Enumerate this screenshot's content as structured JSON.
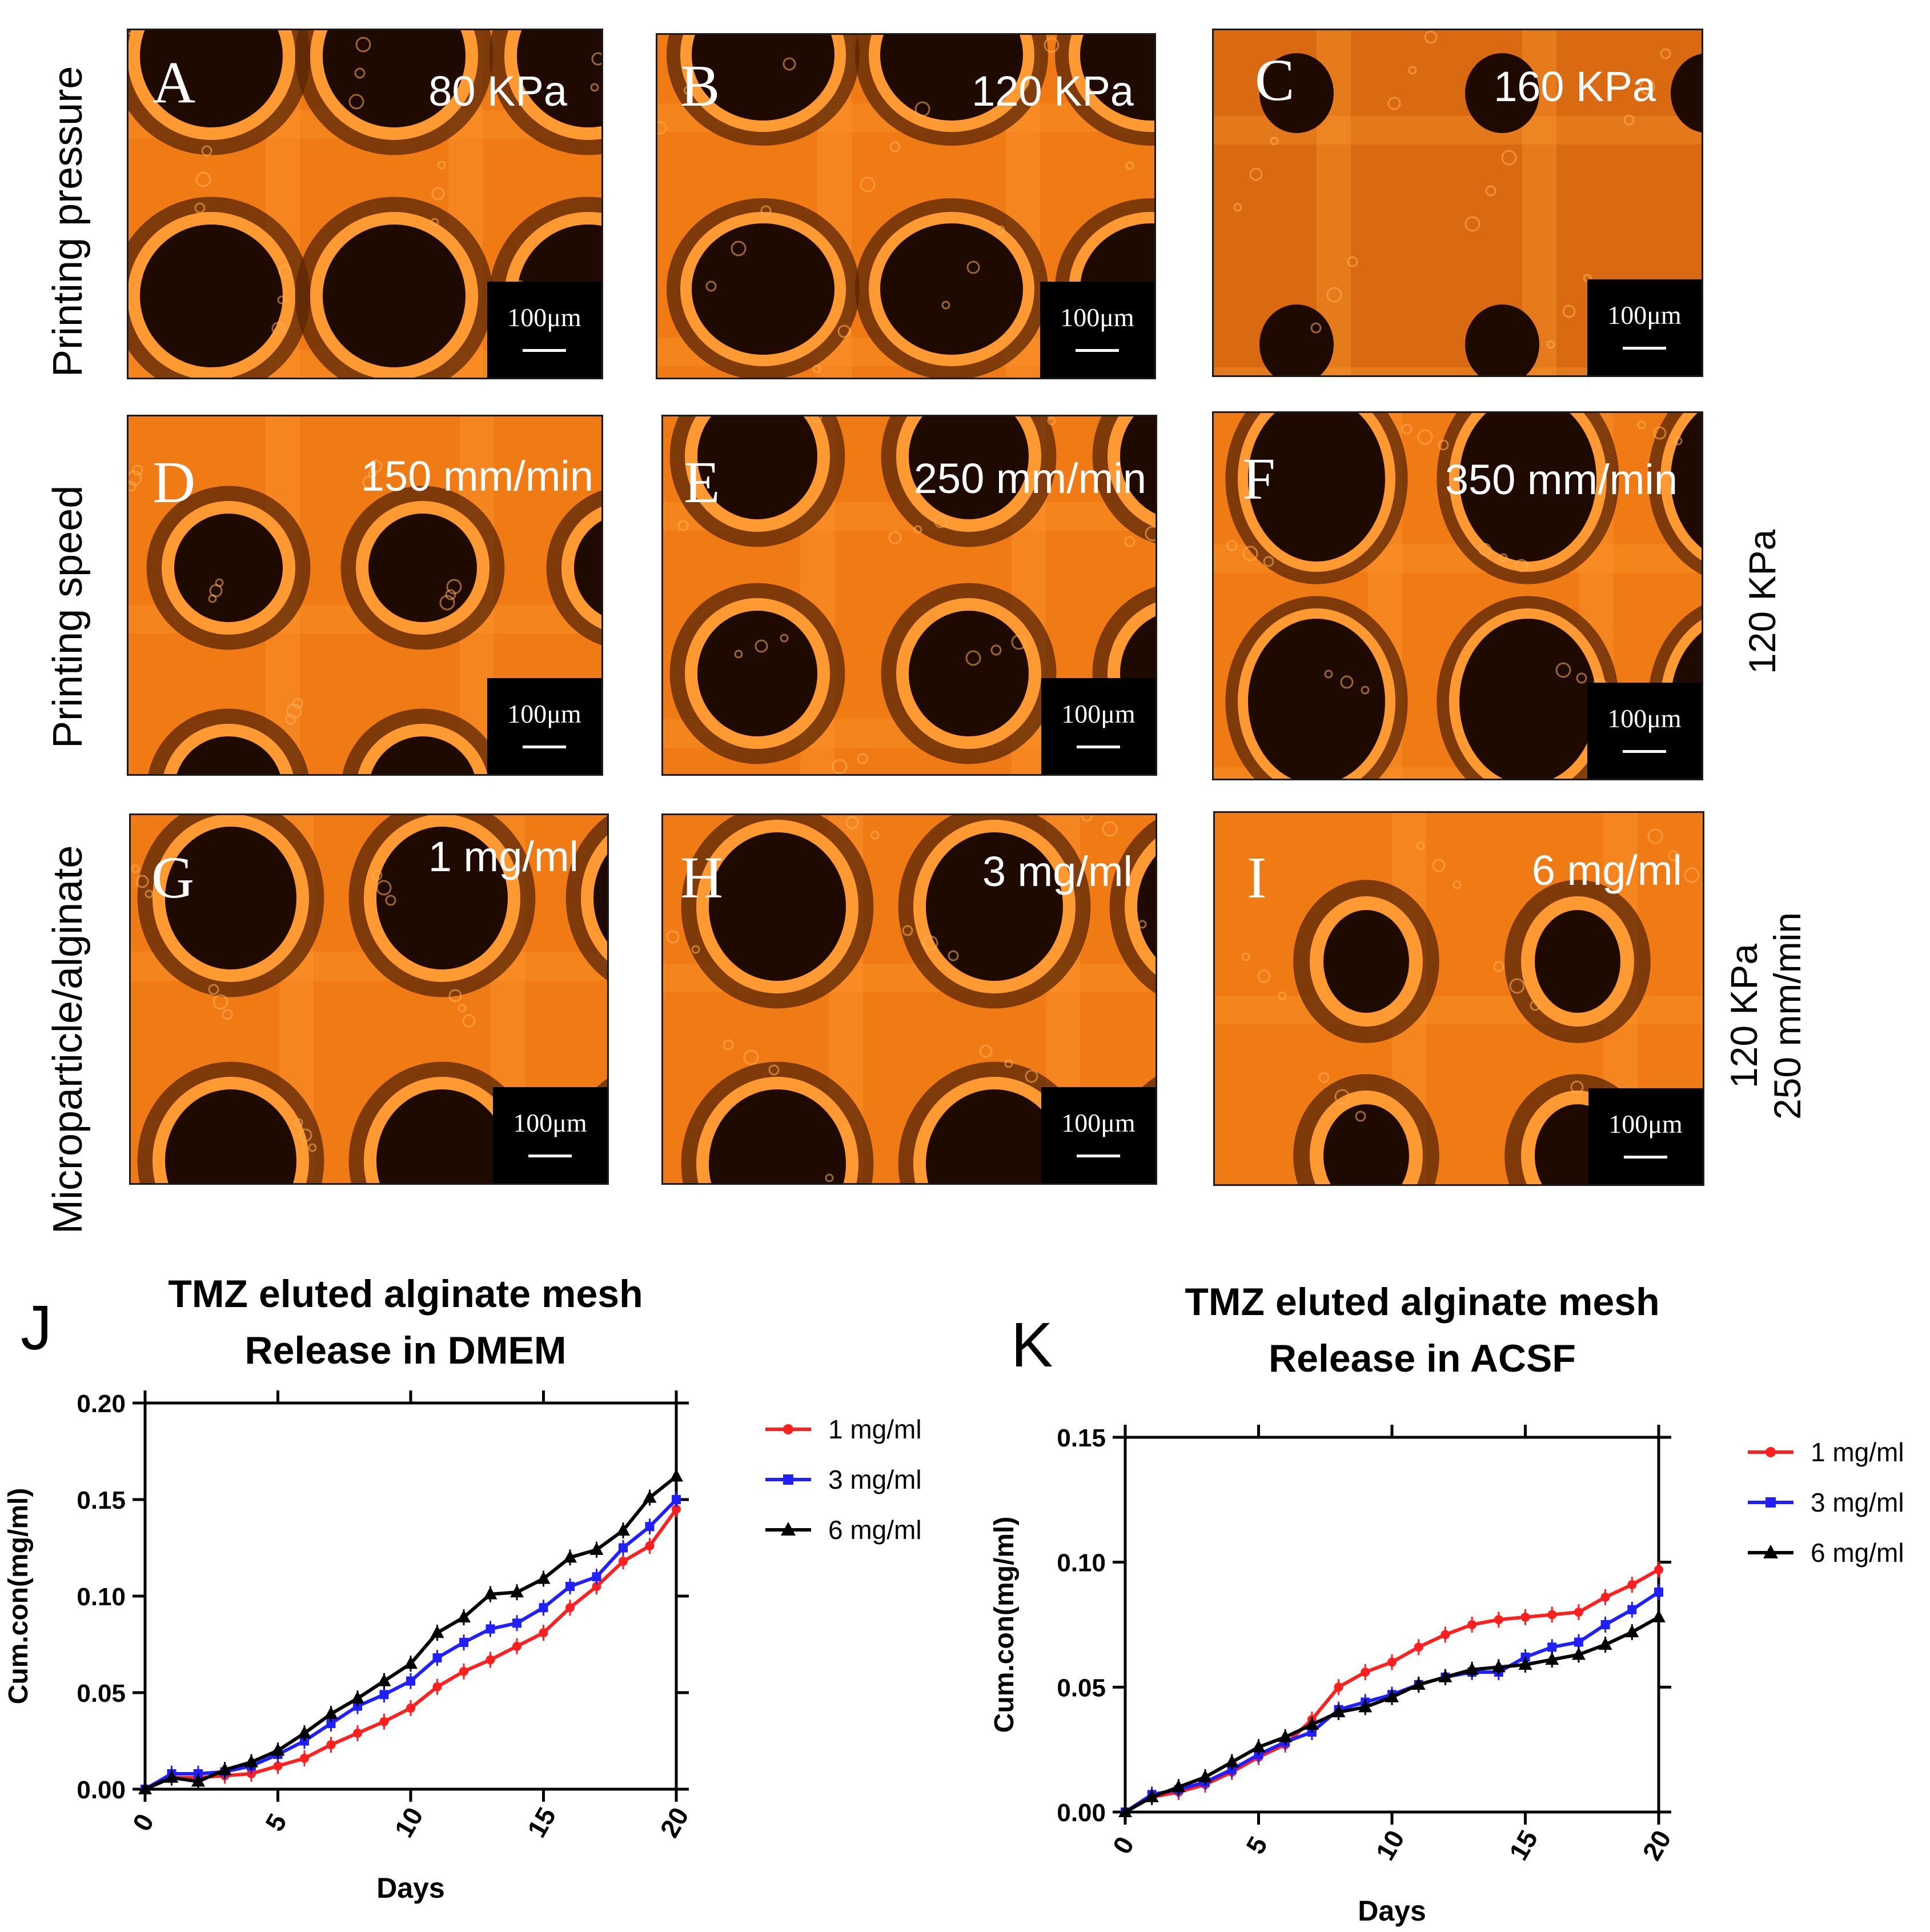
{
  "row_labels": {
    "pressure": "Printing pressure",
    "speed": "Printing speed",
    "ratio": "Microparticle/alginate"
  },
  "side_labels": {
    "speed_row": "120 KPa",
    "ratio_row_line1": "120 KPa",
    "ratio_row_line2": "250 mm/min"
  },
  "scale_bar": "100μm",
  "panels": [
    {
      "letter": "A",
      "param": "80 KPa"
    },
    {
      "letter": "B",
      "param": "120 KPa"
    },
    {
      "letter": "C",
      "param": "160 KPa"
    },
    {
      "letter": "D",
      "param": "150 mm/min"
    },
    {
      "letter": "E",
      "param": "250 mm/min"
    },
    {
      "letter": "F",
      "param": "350 mm/min"
    },
    {
      "letter": "G",
      "param": "1 mg/ml"
    },
    {
      "letter": "H",
      "param": "3 mg/ml"
    },
    {
      "letter": "I",
      "param": "6 mg/ml"
    }
  ],
  "colors": {
    "fluor": "#f07a14",
    "fluor_bright": "#ff9a32",
    "pore": "#1e0a00",
    "series_1": "#ff1f1f",
    "series_3": "#1f1fff",
    "series_6": "#000000"
  },
  "chart_data": [
    {
      "panel": "J",
      "type": "line",
      "title": "TMZ eluted alginate mesh",
      "subtitle": "Release in DMEM",
      "xlabel": "Days",
      "ylabel": "Cum.con(mg/ml)",
      "xlim": [
        0,
        20
      ],
      "ylim": [
        0,
        0.2
      ],
      "xticks": [
        "0",
        "5",
        "10",
        "15",
        "20"
      ],
      "yticks": [
        "0.00",
        "0.05",
        "0.10",
        "0.15",
        "0.20"
      ],
      "legend_position": "right",
      "x": [
        0,
        1,
        2,
        3,
        4,
        5,
        6,
        7,
        8,
        9,
        10,
        11,
        12,
        13,
        14,
        15,
        16,
        17,
        18,
        19,
        20
      ],
      "series": [
        {
          "name": "1 mg/ml",
          "marker": "circle",
          "values": [
            0.0,
            0.006,
            0.006,
            0.007,
            0.008,
            0.012,
            0.016,
            0.023,
            0.029,
            0.035,
            0.042,
            0.053,
            0.061,
            0.067,
            0.074,
            0.081,
            0.094,
            0.105,
            0.118,
            0.126,
            0.145
          ]
        },
        {
          "name": "3 mg/ml",
          "marker": "square",
          "values": [
            0.0,
            0.008,
            0.008,
            0.009,
            0.012,
            0.018,
            0.025,
            0.034,
            0.043,
            0.049,
            0.056,
            0.068,
            0.076,
            0.083,
            0.086,
            0.094,
            0.105,
            0.11,
            0.125,
            0.136,
            0.15
          ]
        },
        {
          "name": "6 mg/ml",
          "marker": "triangle",
          "values": [
            0.0,
            0.006,
            0.004,
            0.01,
            0.014,
            0.02,
            0.029,
            0.039,
            0.047,
            0.056,
            0.065,
            0.081,
            0.089,
            0.101,
            0.102,
            0.109,
            0.12,
            0.124,
            0.134,
            0.151,
            0.162
          ]
        }
      ]
    },
    {
      "panel": "K",
      "type": "line",
      "title": "TMZ eluted alginate mesh",
      "subtitle": "Release in ACSF",
      "xlabel": "Days",
      "ylabel": "Cum.con(mg/ml)",
      "xlim": [
        0,
        20
      ],
      "ylim": [
        0,
        0.15
      ],
      "xticks": [
        "0",
        "5",
        "10",
        "15",
        "20"
      ],
      "yticks": [
        "0.00",
        "0.05",
        "0.10",
        "0.15"
      ],
      "legend_position": "right",
      "x": [
        0,
        1,
        2,
        3,
        4,
        5,
        6,
        7,
        8,
        9,
        10,
        11,
        12,
        13,
        14,
        15,
        16,
        17,
        18,
        19,
        20
      ],
      "series": [
        {
          "name": "1 mg/ml",
          "marker": "circle",
          "values": [
            0.0,
            0.006,
            0.008,
            0.011,
            0.016,
            0.022,
            0.027,
            0.037,
            0.05,
            0.056,
            0.06,
            0.066,
            0.071,
            0.075,
            0.077,
            0.078,
            0.079,
            0.08,
            0.086,
            0.091,
            0.097
          ]
        },
        {
          "name": "3 mg/ml",
          "marker": "square",
          "values": [
            0.0,
            0.007,
            0.009,
            0.012,
            0.017,
            0.023,
            0.028,
            0.032,
            0.041,
            0.044,
            0.047,
            0.051,
            0.054,
            0.056,
            0.056,
            0.062,
            0.066,
            0.068,
            0.075,
            0.081,
            0.088
          ]
        },
        {
          "name": "6 mg/ml",
          "marker": "triangle",
          "values": [
            0.0,
            0.006,
            0.01,
            0.014,
            0.02,
            0.026,
            0.03,
            0.035,
            0.04,
            0.042,
            0.046,
            0.051,
            0.054,
            0.057,
            0.058,
            0.059,
            0.061,
            0.063,
            0.067,
            0.072,
            0.078
          ]
        }
      ]
    }
  ]
}
